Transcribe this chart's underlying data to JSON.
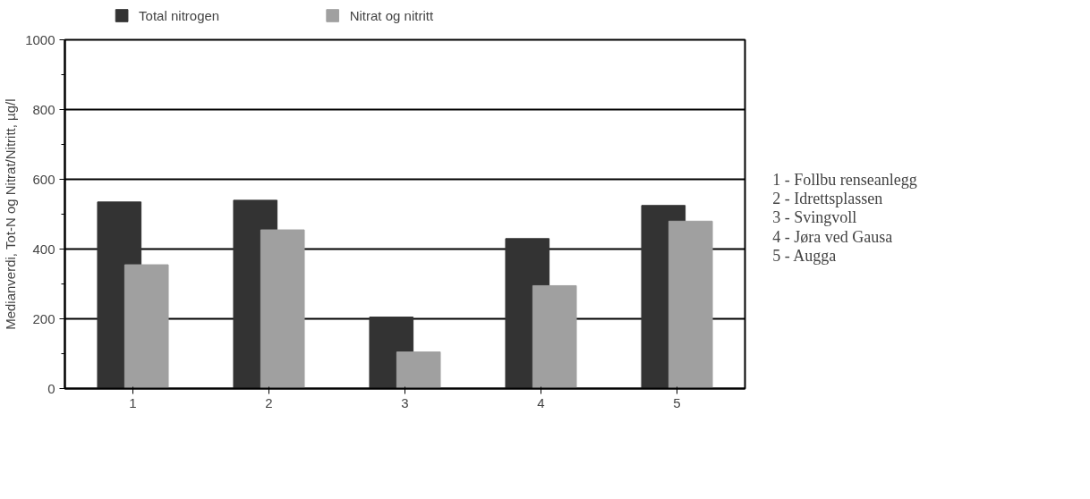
{
  "chart_data": {
    "type": "bar",
    "ylabel": "Medianverdi, Tot-N og Nitrat/Nitritt, µg/l",
    "categories": [
      "1",
      "2",
      "3",
      "4",
      "5"
    ],
    "series": [
      {
        "name": "Total nitrogen",
        "color": "#333333",
        "values": [
          535,
          540,
          205,
          430,
          525
        ]
      },
      {
        "name": "Nitrat og nitritt",
        "color": "#a0a0a0",
        "values": [
          355,
          455,
          105,
          295,
          480
        ]
      }
    ],
    "ylim": [
      0,
      1000
    ],
    "yticks": [
      0,
      200,
      400,
      600,
      800,
      1000
    ],
    "grid": "y",
    "legend": "top",
    "annotations": [
      "1 - Follbu renseanlegg",
      "2 - Idrettsplassen",
      "3 - Svingvoll",
      "4 - Jøra ved Gausa",
      "5 - Augga"
    ]
  }
}
